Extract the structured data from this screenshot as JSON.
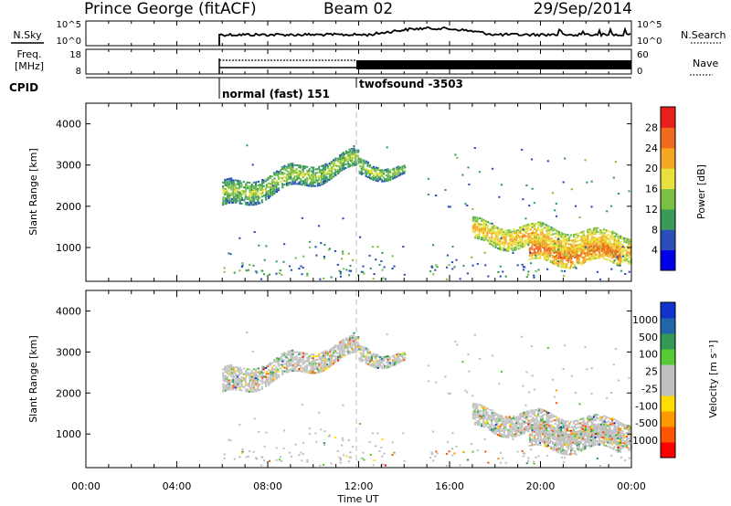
{
  "header": {
    "station": "Prince George (fitACF)",
    "beam": "Beam 02",
    "date": "29/Sep/2014"
  },
  "noise_panel": {
    "left_label": "N.Sky",
    "left_ticks": [
      "10^5",
      "10^0"
    ],
    "right_ticks": [
      "10^5",
      "10^0"
    ],
    "right_label": "N.Search"
  },
  "freq_panel": {
    "left_label_1": "Freq.",
    "left_label_2": "[MHz]",
    "left_ticks": [
      "18",
      "8"
    ],
    "right_ticks": [
      "60",
      "0"
    ],
    "right_label": "Nave"
  },
  "cpid_panel": {
    "label": "CPID",
    "segments": [
      {
        "start_hour": 6.0,
        "name": "normal (fast) 151"
      },
      {
        "start_hour": 12.0,
        "name": "twofsound -3503"
      }
    ]
  },
  "colors": {
    "power_scale": [
      "#0000e6",
      "#2a4fb8",
      "#3a9a5a",
      "#7bc043",
      "#e8e03c",
      "#f5a623",
      "#f06a1e",
      "#e8201a"
    ],
    "velocity_scale": [
      "#ff0000",
      "#ff5500",
      "#ff9900",
      "#ffdd00",
      "#c0c0c0",
      "#c0c0c0",
      "#55cc33",
      "#339955",
      "#2266aa",
      "#1133cc"
    ]
  },
  "chart_data": [
    {
      "type": "heatmap",
      "quantity": "Power",
      "ylabel": "Slant Range [km]",
      "ylim": [
        180,
        4500
      ],
      "yticks": [
        "4000",
        "3000",
        "2000",
        "1000"
      ],
      "xlim": [
        0,
        24
      ],
      "colorbar_label": "Power [dB]",
      "colorbar_ticks": [
        "28",
        "24",
        "20",
        "16",
        "12",
        "8",
        "4"
      ],
      "bands": [
        {
          "t0": 6.0,
          "t1": 12.0,
          "r0": 1900,
          "r1": 2500,
          "r0_end": 2900,
          "r1_end": 3300,
          "db": 16
        },
        {
          "t0": 12.0,
          "t1": 14.0,
          "r0": 2700,
          "r1": 3100,
          "r0_end": 2700,
          "r1_end": 2900,
          "db": 16
        },
        {
          "t0": 17.0,
          "t1": 24.0,
          "r0": 1100,
          "r1": 1600,
          "r0_end": 700,
          "r1_end": 1300,
          "db": 22
        },
        {
          "t0": 19.5,
          "t1": 23.5,
          "r0": 600,
          "r1": 1100,
          "r0_end": 600,
          "r1_end": 1100,
          "db": 26
        }
      ]
    },
    {
      "type": "heatmap",
      "quantity": "Velocity",
      "ylabel": "Slant Range [km]",
      "ylim": [
        180,
        4500
      ],
      "yticks": [
        "4000",
        "3000",
        "2000",
        "1000"
      ],
      "xlim": [
        0,
        24
      ],
      "xticks": [
        "00:00",
        "04:00",
        "08:00",
        "12:00",
        "16:00",
        "20:00",
        "00:00"
      ],
      "xlabel": "Time UT",
      "colorbar_label": "Velocity [m s⁻¹]",
      "colorbar_ticks": [
        "1000",
        "500",
        "100",
        "25",
        "-25",
        "-100",
        "-500",
        "-1000"
      ]
    }
  ]
}
